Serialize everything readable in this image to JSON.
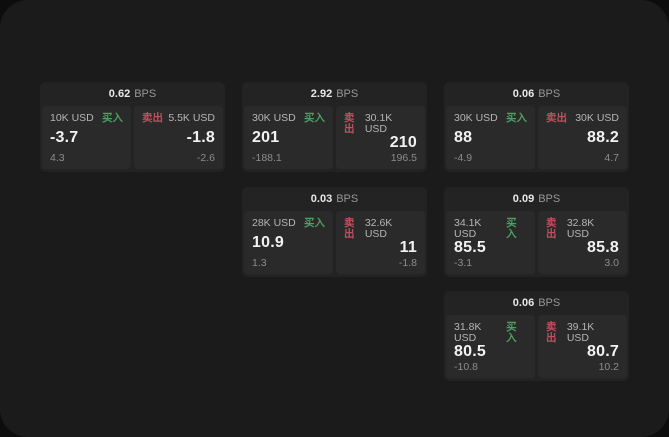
{
  "labels": {
    "bps": "BPS",
    "buy": "买入",
    "sell": "卖出"
  },
  "colors": {
    "buy": "#4c9f63",
    "sell": "#c0505e",
    "panel_bg": "#1b1b1b",
    "card_bg": "#232323",
    "tile_bg": "#2a2a2a"
  },
  "cards": [
    {
      "bps": "0.62",
      "row": 1,
      "col": 1,
      "buy": {
        "amount": "10K USD",
        "value": "-3.7",
        "sub": "4.3"
      },
      "sell": {
        "amount": "5.5K USD",
        "value": "-1.8",
        "sub": "-2.6"
      }
    },
    {
      "bps": "2.92",
      "row": 1,
      "col": 2,
      "buy": {
        "amount": "30K USD",
        "value": "201",
        "sub": "-188.1"
      },
      "sell": {
        "amount": "30.1K USD",
        "value": "210",
        "sub": "196.5"
      }
    },
    {
      "bps": "0.06",
      "row": 1,
      "col": 3,
      "buy": {
        "amount": "30K USD",
        "value": "88",
        "sub": "-4.9"
      },
      "sell": {
        "amount": "30K USD",
        "value": "88.2",
        "sub": "4.7"
      }
    },
    {
      "bps": "0.03",
      "row": 2,
      "col": 2,
      "buy": {
        "amount": "28K USD",
        "value": "10.9",
        "sub": "1.3"
      },
      "sell": {
        "amount": "32.6K USD",
        "value": "11",
        "sub": "-1.8"
      }
    },
    {
      "bps": "0.09",
      "row": 2,
      "col": 3,
      "buy": {
        "amount": "34.1K USD",
        "value": "85.5",
        "sub": "-3.1"
      },
      "sell": {
        "amount": "32.8K USD",
        "value": "85.8",
        "sub": "3.0"
      }
    },
    {
      "bps": "0.06",
      "row": 3,
      "col": 3,
      "buy": {
        "amount": "31.8K USD",
        "value": "80.5",
        "sub": "-10.8"
      },
      "sell": {
        "amount": "39.1K USD",
        "value": "80.7",
        "sub": "10.2"
      }
    }
  ]
}
